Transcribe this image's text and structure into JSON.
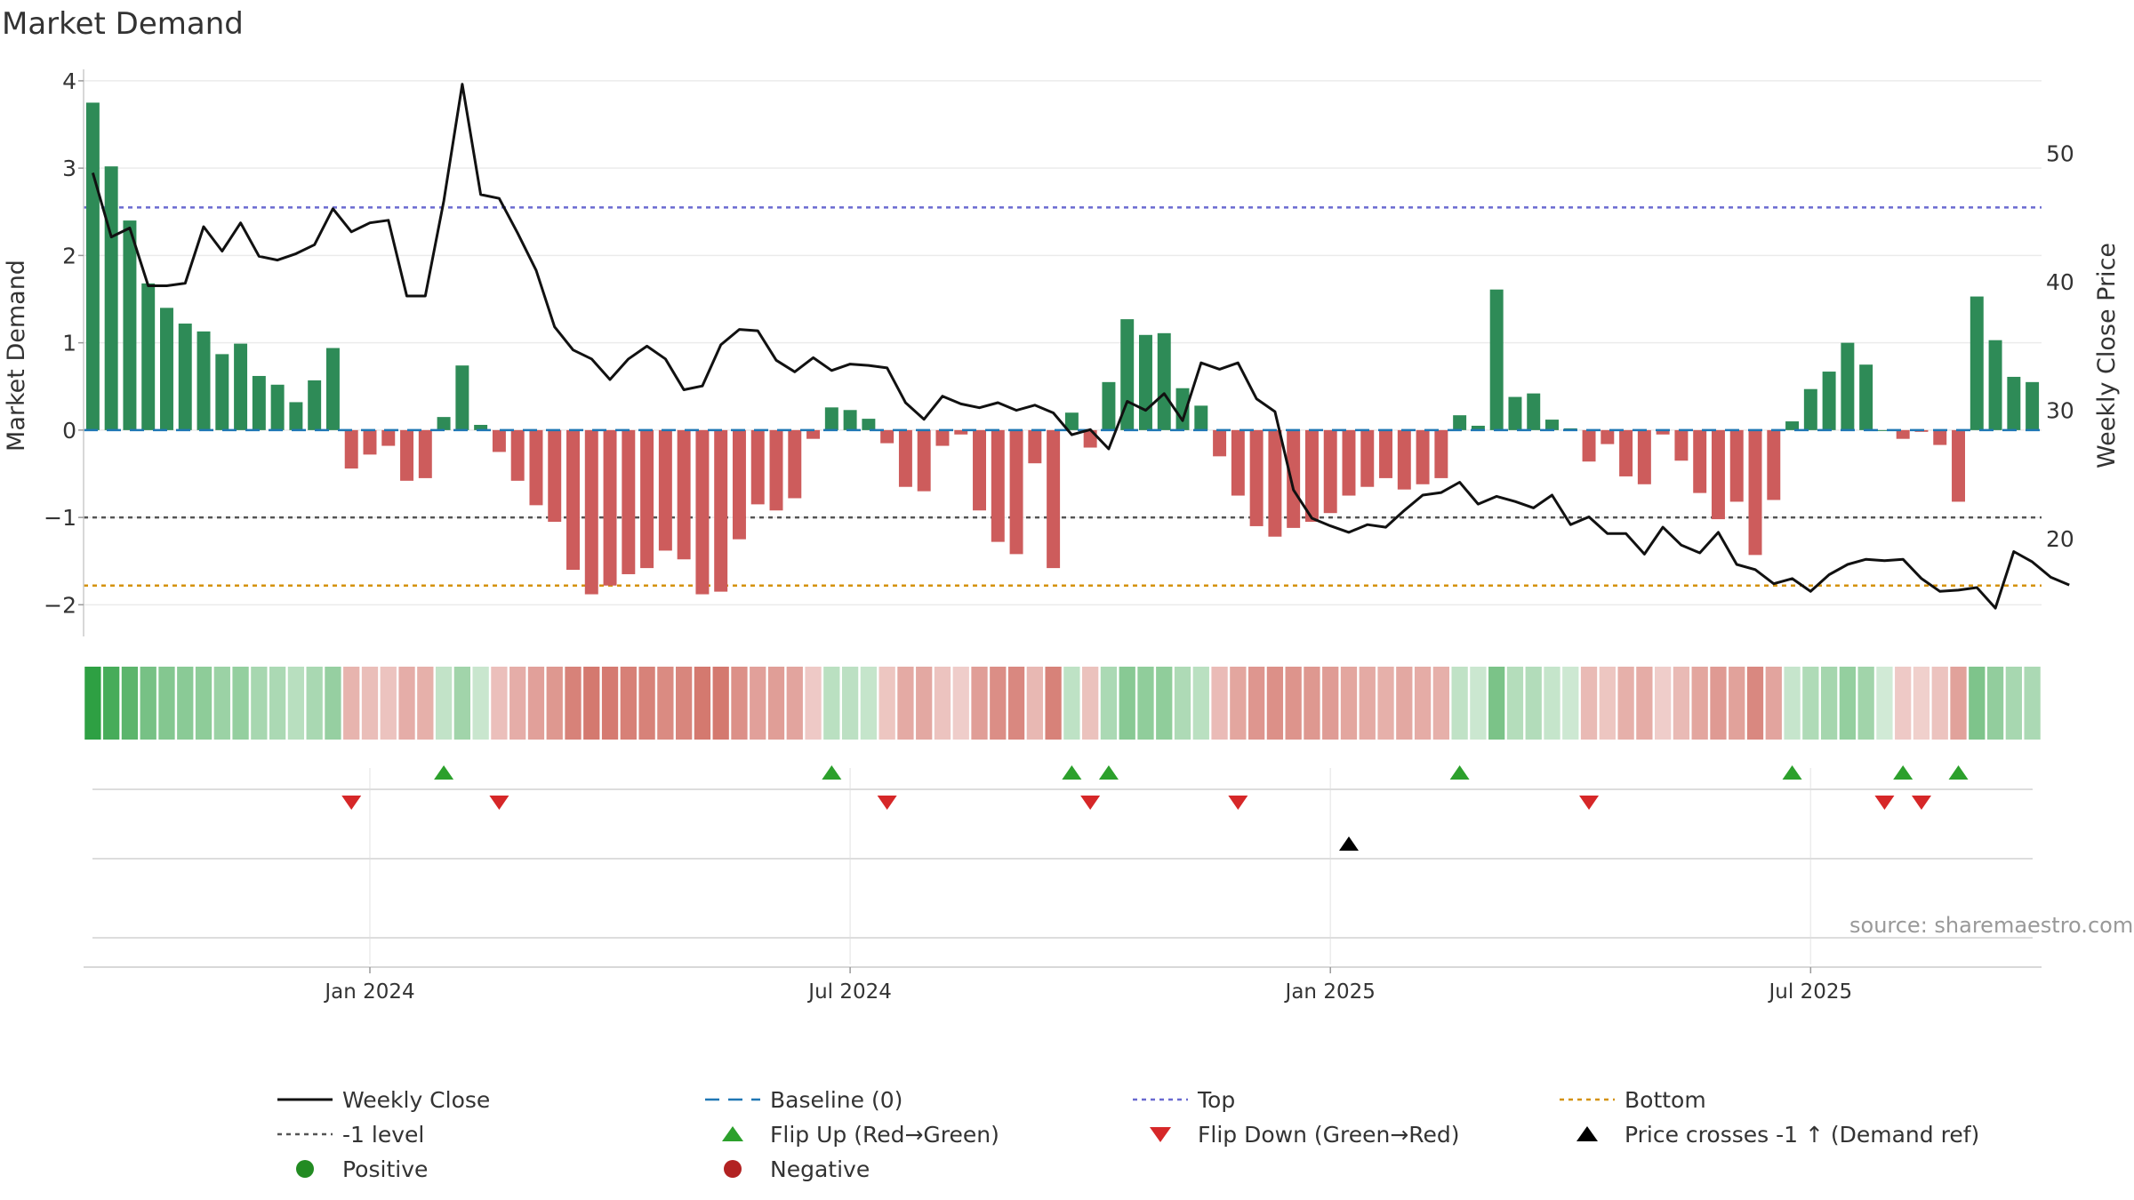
{
  "chart_data": {
    "type": "bar",
    "title": "Market Demand",
    "ylabel": "Market Demand",
    "y2label": "Weekly Close Price",
    "ylim": [
      -2.2,
      4.05
    ],
    "y2lim": [
      13.5,
      56
    ],
    "yticks": [
      "4",
      "3",
      "2",
      "1",
      "0",
      "−1",
      "−2"
    ],
    "ytick_values": [
      4,
      3,
      2,
      1,
      0,
      -1,
      -2
    ],
    "y2ticks": [
      "50",
      "40",
      "30",
      "20"
    ],
    "y2tick_values": [
      50,
      40,
      30,
      20
    ],
    "xticks": [
      "Jan 2024",
      "Jul 2024",
      "Jan 2025",
      "Jul 2025"
    ],
    "xtick_weeks": [
      15.5,
      41.5,
      67.5,
      93.5
    ],
    "top_level": 2.55,
    "bottom_level": -1.78,
    "minus_one_level": -1,
    "demand": [
      3.75,
      3.02,
      2.4,
      1.68,
      1.4,
      1.22,
      1.13,
      0.87,
      0.99,
      0.62,
      0.52,
      0.32,
      0.57,
      0.94,
      -0.44,
      -0.28,
      -0.18,
      -0.58,
      -0.55,
      0.15,
      0.74,
      0.06,
      -0.25,
      -0.58,
      -0.86,
      -1.05,
      -1.6,
      -1.88,
      -1.78,
      -1.65,
      -1.58,
      -1.38,
      -1.48,
      -1.88,
      -1.85,
      -1.25,
      -0.85,
      -0.92,
      -0.78,
      -0.1,
      0.26,
      0.23,
      0.13,
      -0.15,
      -0.65,
      -0.7,
      -0.18,
      -0.05,
      -0.92,
      -1.28,
      -1.42,
      -0.38,
      -1.58,
      0.2,
      -0.2,
      0.55,
      1.27,
      1.09,
      1.11,
      0.48,
      0.28,
      -0.3,
      -0.75,
      -1.1,
      -1.22,
      -1.12,
      -1.05,
      -0.95,
      -0.75,
      -0.65,
      -0.55,
      -0.68,
      -0.62,
      -0.55,
      0.17,
      0.05,
      1.61,
      0.38,
      0.42,
      0.12,
      0.02,
      -0.36,
      -0.16,
      -0.53,
      -0.62,
      -0.05,
      -0.35,
      -0.72,
      -1.02,
      -0.82,
      -1.43,
      -0.8,
      0.1,
      0.47,
      0.67,
      1.0,
      0.75,
      0.0,
      -0.1,
      -0.02,
      -0.17,
      -0.82,
      1.53,
      1.03,
      0.61,
      0.55
    ],
    "price": [
      48.5,
      43.5,
      44.2,
      39.7,
      39.7,
      39.9,
      44.3,
      42.4,
      44.6,
      42.0,
      41.7,
      42.2,
      42.9,
      45.7,
      43.9,
      44.6,
      44.8,
      38.9,
      38.9,
      46.3,
      55.4,
      46.8,
      46.5,
      43.8,
      40.9,
      36.5,
      34.7,
      34.0,
      32.4,
      34.0,
      35.0,
      34.0,
      31.6,
      31.9,
      35.1,
      36.3,
      36.2,
      33.9,
      33.0,
      34.1,
      33.1,
      33.6,
      33.5,
      33.3,
      30.6,
      29.3,
      31.1,
      30.5,
      30.2,
      30.6,
      30.0,
      30.4,
      29.8,
      28.1,
      28.5,
      27.0,
      30.7,
      30.0,
      31.3,
      29.2,
      33.7,
      33.2,
      33.7,
      30.9,
      29.9,
      23.8,
      21.6,
      21.0,
      20.5,
      21.1,
      20.9,
      22.2,
      23.4,
      23.6,
      24.4,
      22.7,
      23.3,
      22.9,
      22.4,
      23.4,
      21.1,
      21.7,
      20.4,
      20.4,
      18.8,
      20.9,
      19.5,
      18.9,
      20.5,
      18.0,
      17.6,
      16.5,
      16.9,
      15.9,
      17.2,
      18.0,
      18.4,
      18.3,
      18.4,
      16.9,
      15.9,
      16.0,
      16.2,
      14.6,
      19.0,
      18.2,
      17.0,
      16.4
    ],
    "flip_up_weeks": [
      19,
      40,
      53,
      55,
      74,
      92,
      98,
      101
    ],
    "flip_down_weeks": [
      14,
      22,
      43,
      54,
      62,
      81,
      97,
      99
    ],
    "price_cross_weeks": [
      68
    ],
    "source": "source: sharemaestro.com",
    "colors": {
      "positive": "#2e8b57",
      "negative": "#cd5c5c",
      "price": "#111111",
      "baseline": "#1f77b4",
      "top": "#6a6ad0",
      "bottom": "#d4920a",
      "minus_one": "#555555",
      "flip_up": "#2ca02c",
      "flip_down": "#d62728",
      "cross": "#000000",
      "positive_dot": "#228b22",
      "negative_dot": "#b22222"
    },
    "legend": [
      {
        "label": "Weekly Close",
        "marker": "line-solid"
      },
      {
        "label": "Baseline (0)",
        "marker": "line-dash"
      },
      {
        "label": "Top",
        "marker": "line-dot-top"
      },
      {
        "label": "Bottom",
        "marker": "line-dot-bottom"
      },
      {
        "label": "-1 level",
        "marker": "line-dot-minus"
      },
      {
        "label": "Flip Up (Red→Green)",
        "marker": "triangle-up"
      },
      {
        "label": "Flip Down (Green→Red)",
        "marker": "triangle-down"
      },
      {
        "label": "Price crosses -1 ↑ (Demand ref)",
        "marker": "triangle-up-black"
      },
      {
        "label": "Positive",
        "marker": "dot-positive"
      },
      {
        "label": "Negative",
        "marker": "dot-negative"
      }
    ]
  }
}
